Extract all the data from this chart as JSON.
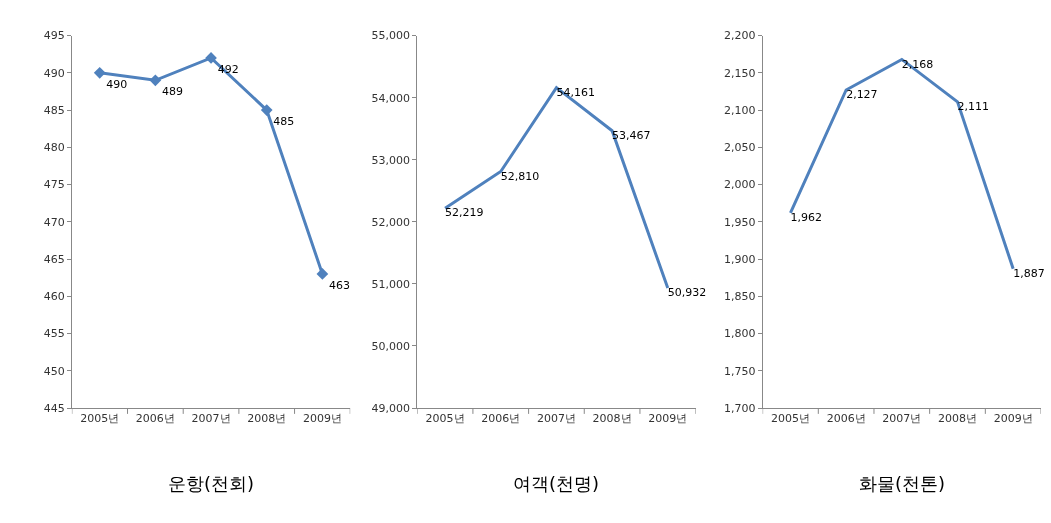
{
  "chart_data": [
    {
      "type": "line",
      "title": "운항(천회)",
      "categories": [
        "2005년",
        "2006년",
        "2007년",
        "2008년",
        "2009년"
      ],
      "series": [
        {
          "color": "#4f81bd",
          "values": [
            490,
            489,
            492,
            485,
            463
          ]
        }
      ],
      "ylim": [
        445,
        495
      ],
      "yticks": [
        445,
        450,
        455,
        460,
        465,
        470,
        475,
        480,
        485,
        490,
        495
      ],
      "data_labels": true,
      "marker": "diamond",
      "grid": false
    },
    {
      "type": "line",
      "title": "여객(천명)",
      "categories": [
        "2005년",
        "2006년",
        "2007년",
        "2008년",
        "2009년"
      ],
      "series": [
        {
          "color": "#4f81bd",
          "values": [
            52219,
            52810,
            54161,
            53467,
            50932
          ],
          "value_labels": [
            "52,219",
            "52,810",
            "54,161",
            "53,467",
            "50,932"
          ]
        }
      ],
      "ylim": [
        49000,
        55000
      ],
      "yticks": [
        {
          "value": 49000,
          "label": "49,000"
        },
        {
          "value": 50000,
          "label": "50,000"
        },
        {
          "value": 51000,
          "label": "51,000"
        },
        {
          "value": 52000,
          "label": "52,000"
        },
        {
          "value": 53000,
          "label": "53,000"
        },
        {
          "value": 54000,
          "label": "54,000"
        },
        {
          "value": 55000,
          "label": "55,000"
        }
      ],
      "grid": false
    },
    {
      "type": "line",
      "title": "화물(천톤)",
      "categories": [
        "2005년",
        "2006년",
        "2007년",
        "2008년",
        "2009년"
      ],
      "series": [
        {
          "color": "#4f81bd",
          "values": [
            1962,
            2127,
            2168,
            2111,
            1887
          ],
          "value_labels": [
            "1,962",
            "2,127",
            "2,168",
            "2,111",
            "1,887"
          ]
        }
      ],
      "ylim": [
        1700,
        2200
      ],
      "yticks": [
        {
          "value": 1700,
          "label": "1,700"
        },
        {
          "value": 1750,
          "label": "1,750"
        },
        {
          "value": 1800,
          "label": "1,800"
        },
        {
          "value": 1850,
          "label": "1,850"
        },
        {
          "value": 1900,
          "label": "1,900"
        },
        {
          "value": 1950,
          "label": "1,950"
        },
        {
          "value": 2000,
          "label": "2,000"
        },
        {
          "value": 2050,
          "label": "2,050"
        },
        {
          "value": 2100,
          "label": "2,100"
        },
        {
          "value": 2150,
          "label": "2,150"
        },
        {
          "value": 2200,
          "label": "2,200"
        }
      ],
      "grid": false
    }
  ]
}
